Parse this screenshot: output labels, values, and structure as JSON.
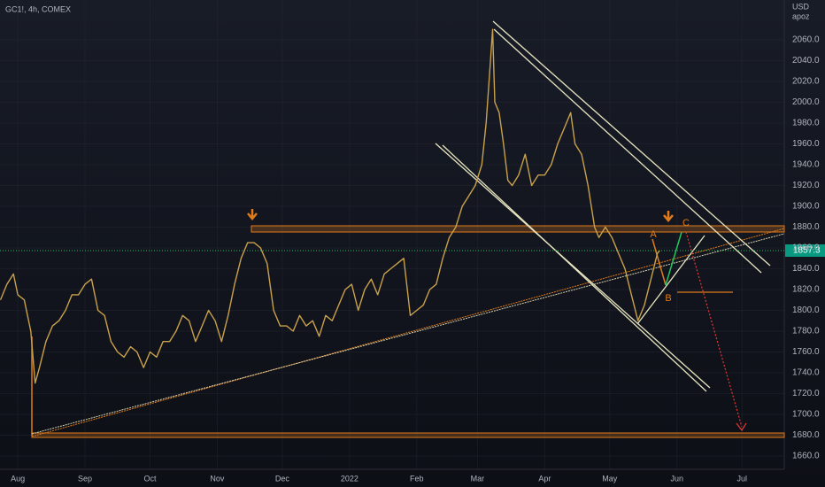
{
  "chart_data": {
    "type": "line",
    "title": "GC1!, 4h, COMEX",
    "y_unit": "USD",
    "y_unit_sub": "apoz",
    "color": "#c9a14a",
    "x": [
      -8,
      -5,
      -2,
      0,
      3,
      6,
      8,
      10,
      13,
      16,
      19,
      22,
      25,
      28,
      31,
      34,
      37,
      40,
      43,
      46,
      49,
      52,
      55,
      58,
      61,
      64,
      67,
      70,
      73,
      76,
      79,
      82,
      85,
      88,
      91,
      94,
      97,
      100,
      103,
      106,
      109,
      112,
      115,
      118,
      121,
      124,
      127,
      130,
      133,
      136,
      139,
      142,
      145,
      148,
      151,
      154,
      157,
      160,
      163,
      166,
      169,
      172,
      175,
      178,
      181,
      184,
      187,
      190,
      193,
      196,
      199,
      202,
      205,
      208,
      211,
      214,
      216,
      218,
      219,
      220,
      222,
      224,
      226,
      228,
      231,
      234,
      237,
      240,
      243,
      246,
      249,
      252,
      255,
      257,
      260,
      263,
      266,
      268,
      271,
      274,
      277,
      280,
      283,
      286,
      289,
      292,
      295,
      296
    ],
    "values": [
      1810,
      1825,
      1835,
      1815,
      1810,
      1780,
      1730,
      1745,
      1770,
      1785,
      1790,
      1800,
      1815,
      1815,
      1825,
      1830,
      1800,
      1795,
      1770,
      1760,
      1755,
      1765,
      1760,
      1745,
      1760,
      1755,
      1770,
      1770,
      1780,
      1795,
      1790,
      1770,
      1785,
      1800,
      1790,
      1770,
      1795,
      1825,
      1850,
      1865,
      1865,
      1860,
      1845,
      1800,
      1785,
      1785,
      1780,
      1795,
      1785,
      1790,
      1775,
      1795,
      1790,
      1805,
      1820,
      1825,
      1800,
      1820,
      1830,
      1815,
      1835,
      1840,
      1845,
      1850,
      1795,
      1800,
      1805,
      1820,
      1825,
      1850,
      1870,
      1880,
      1900,
      1910,
      1920,
      1940,
      1980,
      2040,
      2070,
      2000,
      1990,
      1960,
      1925,
      1920,
      1930,
      1950,
      1920,
      1930,
      1930,
      1940,
      1960,
      1975,
      1990,
      1960,
      1950,
      1920,
      1880,
      1870,
      1880,
      1870,
      1855,
      1840,
      1815,
      1790,
      1805,
      1830,
      1855,
      1857.3
    ],
    "last_price_label": "1857.3",
    "xlim": [
      -8.2,
      353.5
    ],
    "xticks": [
      {
        "value": 0,
        "label": "Aug"
      },
      {
        "value": 31,
        "label": "Sep"
      },
      {
        "value": 61,
        "label": "Oct"
      },
      {
        "value": 92,
        "label": "Nov"
      },
      {
        "value": 122,
        "label": "Dec"
      },
      {
        "value": 153,
        "label": "2022"
      },
      {
        "value": 184,
        "label": "Feb"
      },
      {
        "value": 212,
        "label": "Mar"
      },
      {
        "value": 243,
        "label": "Apr"
      },
      {
        "value": 273,
        "label": "May"
      },
      {
        "value": 304,
        "label": "Jun"
      },
      {
        "value": 334,
        "label": "Jul"
      }
    ],
    "ylim": [
      1647.2,
      2098.3
    ],
    "yticks": [
      {
        "value": 1660,
        "label": "1660.0"
      },
      {
        "value": 1680,
        "label": "1680.0"
      },
      {
        "value": 1700,
        "label": "1700.0"
      },
      {
        "value": 1720,
        "label": "1720.0"
      },
      {
        "value": 1740,
        "label": "1740.0"
      },
      {
        "value": 1760,
        "label": "1760.0"
      },
      {
        "value": 1780,
        "label": "1780.0"
      },
      {
        "value": 1800,
        "label": "1800.0"
      },
      {
        "value": 1820,
        "label": "1820.0"
      },
      {
        "value": 1840,
        "label": "1840.0"
      },
      {
        "value": 1860,
        "label": "1860.0"
      },
      {
        "value": 1880,
        "label": "1880.0"
      },
      {
        "value": 1900,
        "label": "1900.0"
      },
      {
        "value": 1920,
        "label": "1920.0"
      },
      {
        "value": 1940,
        "label": "1940.0"
      },
      {
        "value": 1960,
        "label": "1960.0"
      },
      {
        "value": 1980,
        "label": "1980.0"
      },
      {
        "value": 2000,
        "label": "2000.0"
      },
      {
        "value": 2020,
        "label": "2020.0"
      },
      {
        "value": 2040,
        "label": "2040.0"
      },
      {
        "value": 2060,
        "label": "2060.0"
      }
    ],
    "grid": true,
    "annotations": [
      "A",
      "B",
      "C"
    ]
  }
}
